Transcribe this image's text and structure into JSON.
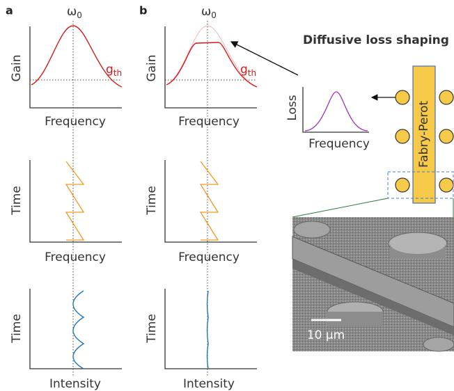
{
  "panels": [
    {
      "label": "a",
      "omega": "ω",
      "omega_sub": "0",
      "gain": "Gain",
      "threshold": "g",
      "threshold_sub": "th",
      "x_labels": [
        "Frequency",
        "Frequency",
        "Intensity"
      ],
      "time_labels": [
        "Time",
        "Time"
      ]
    },
    {
      "label": "b",
      "omega": "ω",
      "omega_sub": "0",
      "gain": "Gain",
      "threshold": "g",
      "threshold_sub": "th",
      "x_labels": [
        "Frequency",
        "Frequency",
        "Intensity"
      ],
      "time_labels": [
        "Time",
        "Time"
      ]
    }
  ],
  "inset": {
    "title": "Diffusive loss shaping",
    "y_label": "Loss",
    "x_label": "Frequency",
    "cavity": "Fabry-Perot",
    "scale_bar": "10 μm"
  }
}
